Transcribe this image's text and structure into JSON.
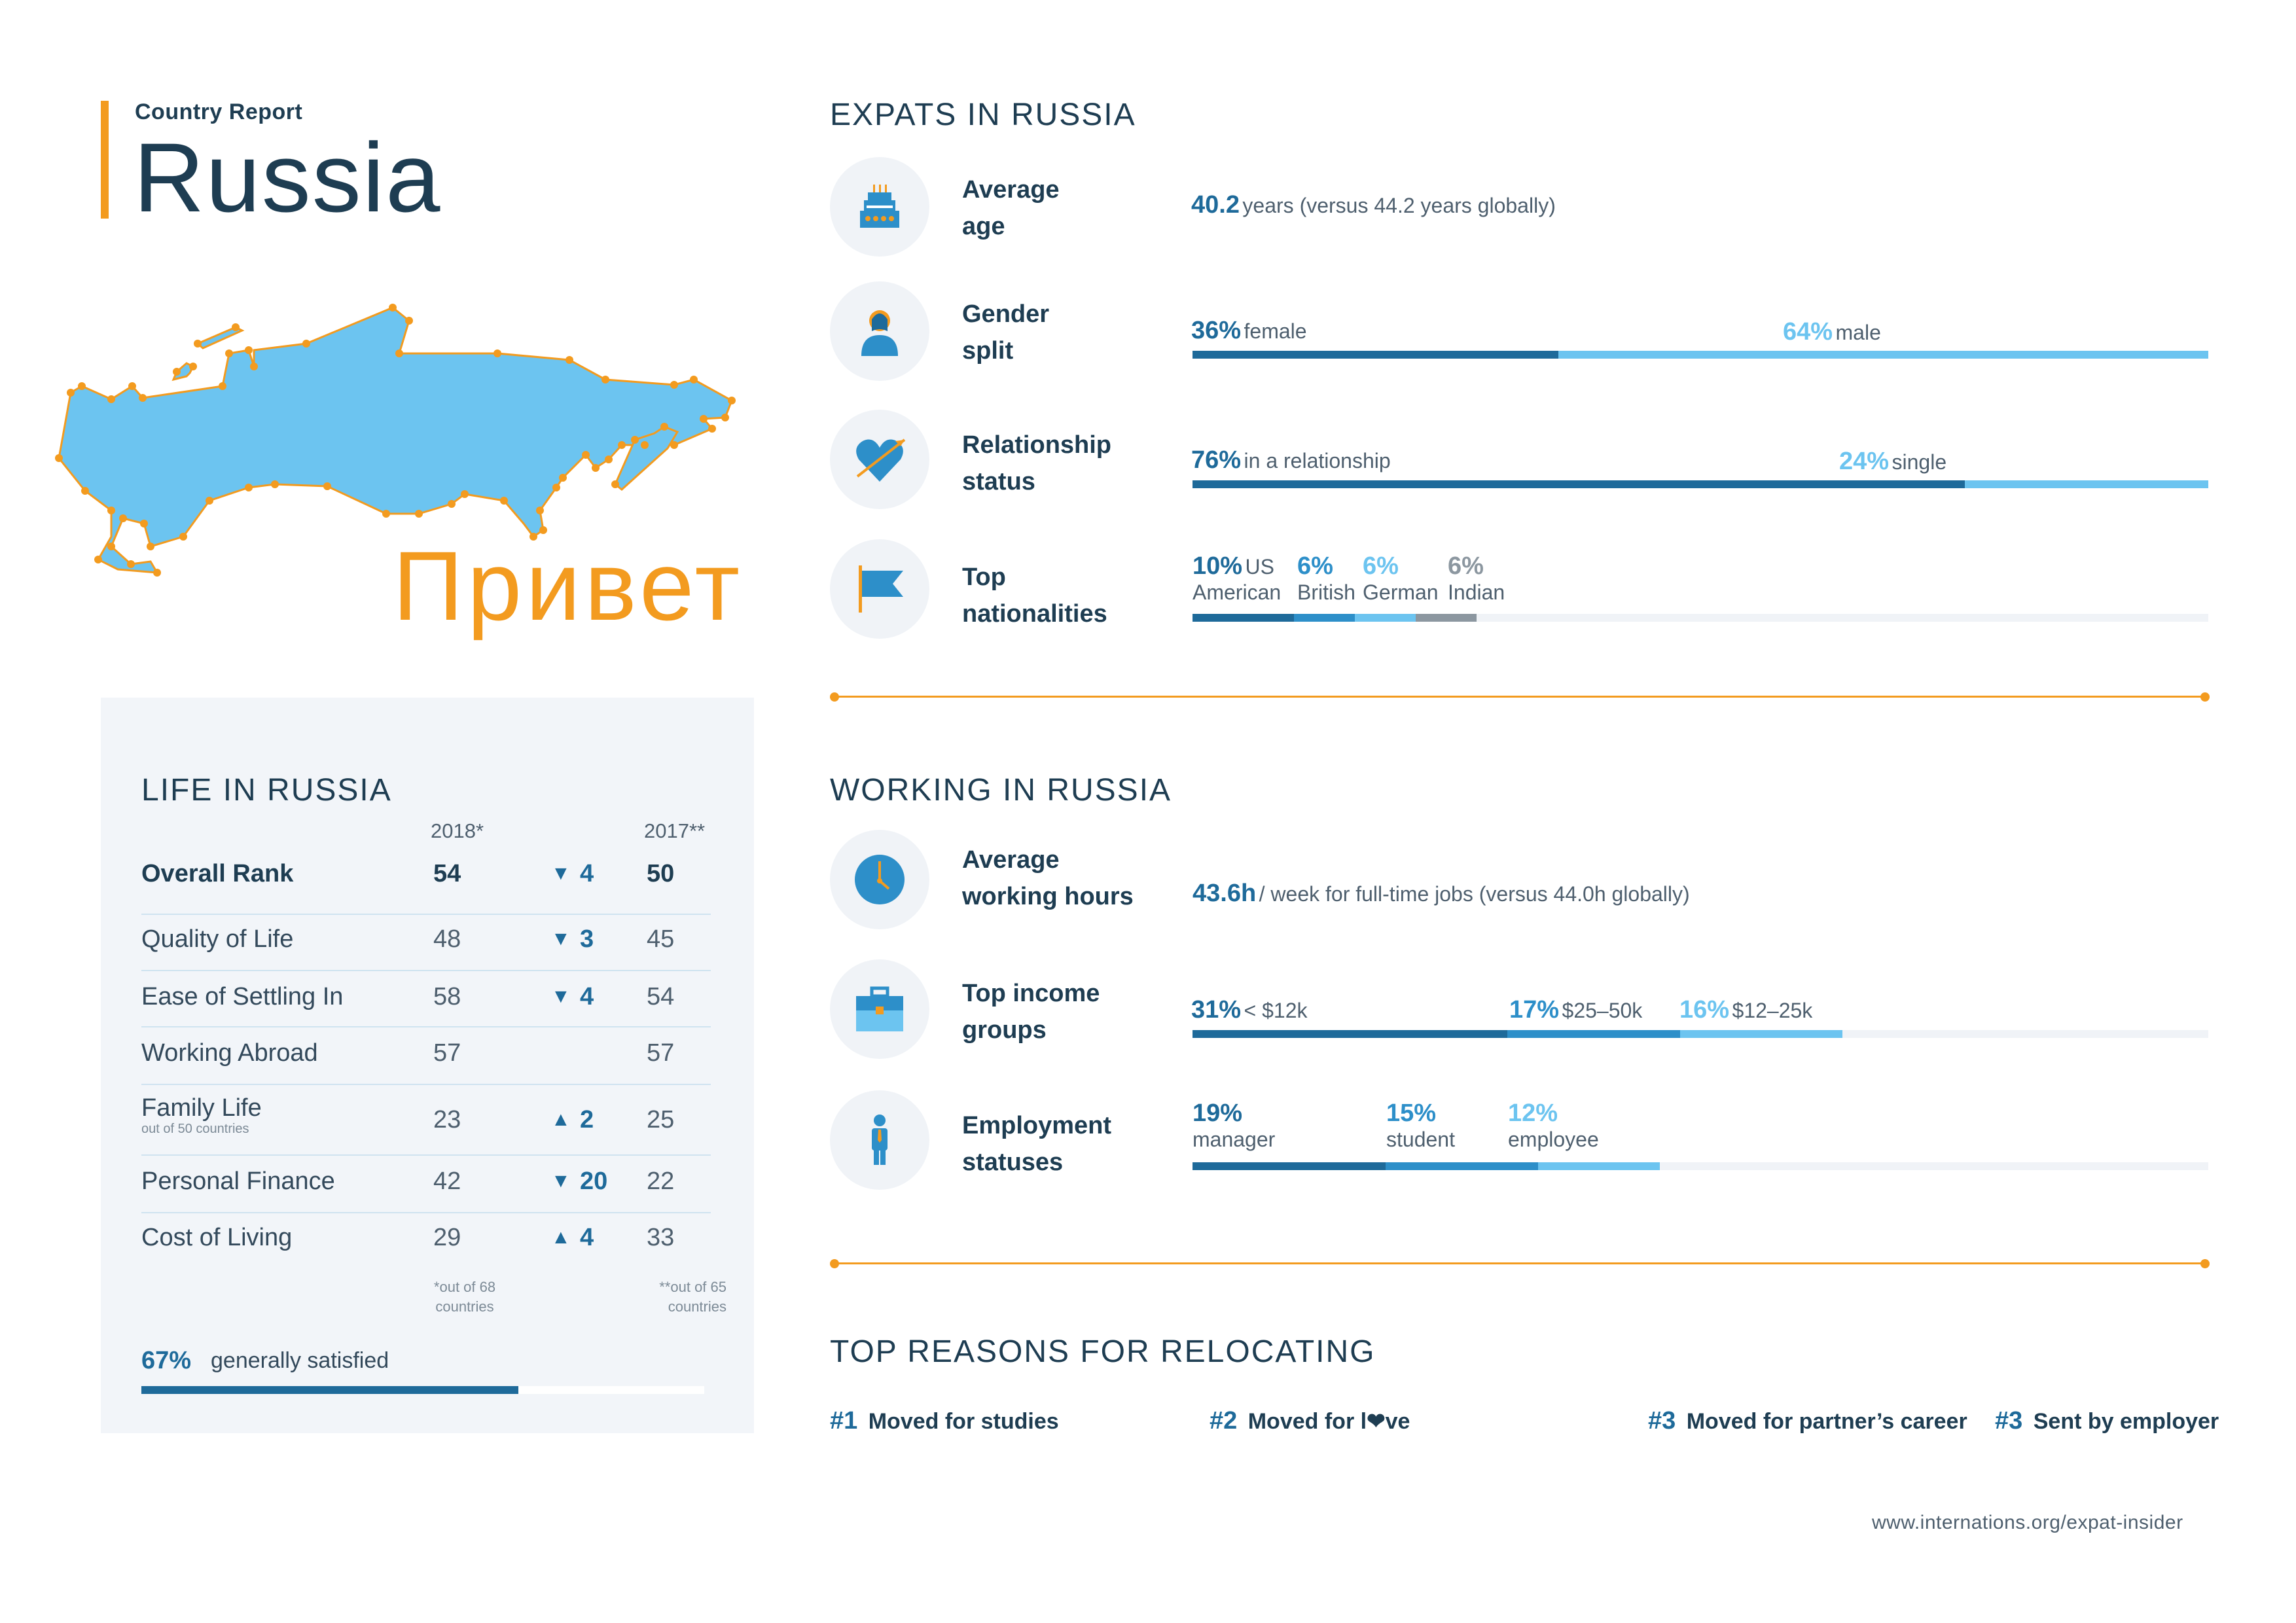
{
  "header": {
    "report_label": "Country Report",
    "country": "Russia",
    "greeting": "Привет"
  },
  "life": {
    "title": "LIFE IN RUSSIA",
    "col_2018": "2018*",
    "col_2017": "2017**",
    "rows": [
      {
        "label": "Overall Rank",
        "v2018": "54",
        "arrow": "▼",
        "change": "4",
        "v2017": "50",
        "sub": ""
      },
      {
        "label": "Quality of Life",
        "v2018": "48",
        "arrow": "▼",
        "change": "3",
        "v2017": "45",
        "sub": ""
      },
      {
        "label": "Ease of Settling In",
        "v2018": "58",
        "arrow": "▼",
        "change": "4",
        "v2017": "54",
        "sub": ""
      },
      {
        "label": "Working Abroad",
        "v2018": "57",
        "arrow": "",
        "change": "",
        "v2017": "57",
        "sub": ""
      },
      {
        "label": "Family Life",
        "v2018": "23",
        "arrow": "▲",
        "change": "2",
        "v2017": "25",
        "sub": "out of 50 countries"
      },
      {
        "label": "Personal Finance",
        "v2018": "42",
        "arrow": "▼",
        "change": "20",
        "v2017": "22",
        "sub": ""
      },
      {
        "label": "Cost of Living",
        "v2018": "29",
        "arrow": "▲",
        "change": "4",
        "v2017": "33",
        "sub": ""
      }
    ],
    "note_2018_line1": "*out of 68",
    "note_2018_line2": "countries",
    "note_2017_line1": "**out of 65",
    "note_2017_line2": "countries",
    "satisfied_pct": "67%",
    "satisfied_text": "generally satisfied",
    "satisfied_value": 67
  },
  "expats": {
    "title": "EXPATS IN RUSSIA",
    "age": {
      "label_1": "Average",
      "label_2": "age",
      "value": "40.2",
      "text": "years (versus 44.2 years globally)"
    },
    "gender": {
      "label_1": "Gender",
      "label_2": "split",
      "female_pct": "36%",
      "female_text": "female",
      "male_pct": "64%",
      "male_text": "male",
      "female_value": 36,
      "male_value": 64
    },
    "relationship": {
      "label_1": "Relationship",
      "label_2": "status",
      "rel_pct": "76%",
      "rel_text": "in a relationship",
      "single_pct": "24%",
      "single_text": "single",
      "rel_value": 76,
      "single_value": 24
    },
    "nationalities": {
      "label_1": "Top",
      "label_2": "nationalities",
      "items": [
        {
          "pct": "10%",
          "line1": "US",
          "line2": "American",
          "value": 10
        },
        {
          "pct": "6%",
          "line1": "",
          "line2": "British",
          "value": 6
        },
        {
          "pct": "6%",
          "line1": "",
          "line2": "German",
          "value": 6
        },
        {
          "pct": "6%",
          "line1": "",
          "line2": "Indian",
          "value": 6
        }
      ]
    }
  },
  "working": {
    "title": "WORKING IN RUSSIA",
    "hours": {
      "label_1": "Average",
      "label_2": "working hours",
      "value": "43.6h",
      "text": "/ week for full-time jobs (versus 44.0h globally)"
    },
    "income": {
      "label_1": "Top income",
      "label_2": "groups",
      "items": [
        {
          "pct": "31%",
          "text": "< $12k",
          "value": 31
        },
        {
          "pct": "17%",
          "text": "$25–50k",
          "value": 17
        },
        {
          "pct": "16%",
          "text": "$12–25k",
          "value": 16
        }
      ]
    },
    "employment": {
      "label_1": "Employment",
      "label_2": "statuses",
      "items": [
        {
          "pct": "19%",
          "text": "manager",
          "value": 19
        },
        {
          "pct": "15%",
          "text": "student",
          "value": 15
        },
        {
          "pct": "12%",
          "text": "employee",
          "value": 12
        }
      ]
    }
  },
  "reasons": {
    "title": "TOP REASONS FOR RELOCATING",
    "items": [
      {
        "num": "#1",
        "text": "Moved for studies"
      },
      {
        "num": "#2",
        "text_a": "Moved for l",
        "text_b": "ve"
      },
      {
        "num": "#3",
        "text": "Moved for partner’s career"
      },
      {
        "num": "#3",
        "text": "Sent by employer"
      }
    ]
  },
  "footer": {
    "url": "www.internations.org/expat-insider"
  },
  "colors": {
    "accent": "#f39b1f",
    "dark_blue": "#1e6a9a",
    "mid_blue": "#2d8fc9",
    "light_blue": "#6cc4f0",
    "grey": "#8c97a0",
    "navy": "#1e3d52"
  }
}
